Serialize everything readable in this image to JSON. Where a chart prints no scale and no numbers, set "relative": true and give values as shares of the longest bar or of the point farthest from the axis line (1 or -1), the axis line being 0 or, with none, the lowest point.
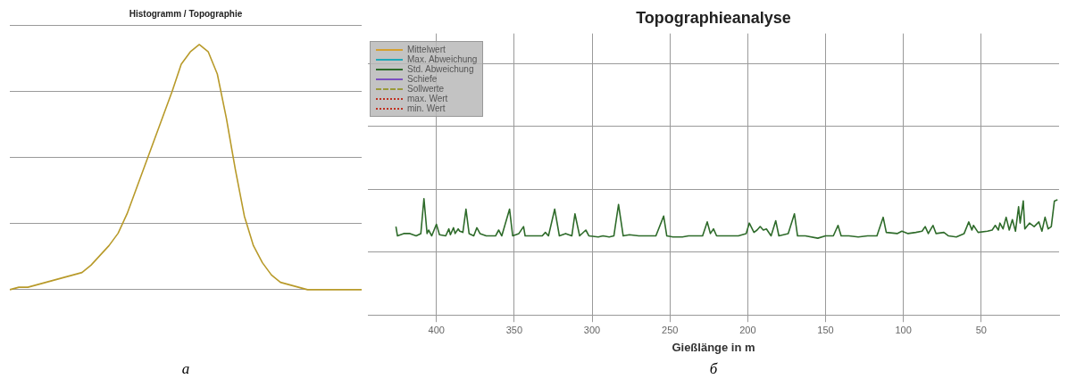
{
  "chart_data": [
    {
      "type": "line",
      "title": "Histogramm / Topographie",
      "relative": true,
      "categories": [
        null,
        null,
        null,
        null,
        null,
        null,
        null,
        null,
        null,
        null,
        null,
        null,
        null,
        null,
        null,
        null,
        null,
        null,
        null,
        null,
        null,
        null,
        null,
        null,
        null,
        null,
        null,
        null,
        null,
        null,
        null,
        null,
        null,
        null,
        null,
        null,
        null,
        null,
        null,
        null
      ],
      "values": [
        0,
        0.01,
        0.01,
        0.02,
        0.03,
        0.04,
        0.05,
        0.06,
        0.07,
        0.1,
        0.14,
        0.18,
        0.23,
        0.31,
        0.41,
        0.51,
        0.61,
        0.71,
        0.81,
        0.92,
        0.97,
        1,
        0.97,
        0.88,
        0.7,
        0.49,
        0.3,
        0.18,
        0.11,
        0.06,
        0.03,
        0.02,
        0.01,
        0,
        0,
        0,
        0,
        0,
        0,
        0
      ],
      "color": "#b89a2a",
      "marker": "none",
      "grid": "y",
      "annotations": [
        "а"
      ]
    },
    {
      "type": "line",
      "title": "Topographieanalyse",
      "xlabel": "Gießlänge in m",
      "relative": true,
      "xlim": [
        444,
        0
      ],
      "xticks": [
        400,
        350,
        300,
        250,
        200,
        150,
        100,
        50
      ],
      "grid": true,
      "legend": "top left",
      "marker": "none",
      "annotations": [
        "б"
      ],
      "series": [
        {
          "name": "Mittelwert",
          "color": "#d4a030"
        },
        {
          "name": "Max. Abweichung",
          "color": "#20a8b8"
        },
        {
          "name": "Std. Abweichung",
          "color": "#2e6b2a",
          "x": [
            426,
            425,
            421,
            417,
            413,
            410,
            408,
            406,
            405,
            403,
            400,
            398,
            394,
            392,
            391,
            389,
            388,
            386,
            385,
            383,
            381,
            379,
            376,
            374,
            372,
            368,
            362,
            360,
            358,
            353,
            351,
            347,
            344,
            343,
            338,
            332,
            330,
            328,
            324,
            321,
            317,
            313,
            311,
            308,
            304,
            302,
            296,
            293,
            289,
            286,
            283,
            280,
            276,
            270,
            264,
            259,
            254,
            252,
            248,
            242,
            238,
            232,
            229,
            226,
            224,
            222,
            220,
            214,
            206,
            201,
            199,
            196,
            194,
            192,
            190,
            188,
            185,
            182,
            180,
            174,
            170,
            168,
            163,
            155,
            150,
            145,
            142,
            140,
            135,
            129,
            123,
            117,
            113,
            111,
            104,
            101,
            97,
            92,
            88,
            86,
            84,
            81,
            79,
            74,
            71,
            66,
            61,
            58,
            56,
            55,
            52,
            46,
            43,
            41,
            39,
            38,
            36,
            34,
            32,
            30,
            28,
            26,
            25,
            23,
            22,
            19,
            16,
            13,
            11,
            9,
            7,
            5,
            3,
            1
          ],
          "values": [
            0.76,
            0.68,
            0.7,
            0.7,
            0.68,
            0.7,
            1,
            0.7,
            0.73,
            0.68,
            0.78,
            0.69,
            0.68,
            0.74,
            0.69,
            0.75,
            0.7,
            0.74,
            0.72,
            0.71,
            0.91,
            0.7,
            0.68,
            0.75,
            0.7,
            0.68,
            0.68,
            0.73,
            0.68,
            0.91,
            0.68,
            0.7,
            0.76,
            0.68,
            0.68,
            0.68,
            0.71,
            0.68,
            0.91,
            0.68,
            0.7,
            0.68,
            0.87,
            0.68,
            0.73,
            0.68,
            0.67,
            0.68,
            0.67,
            0.68,
            0.95,
            0.68,
            0.69,
            0.68,
            0.68,
            0.68,
            0.85,
            0.68,
            0.67,
            0.67,
            0.68,
            0.68,
            0.68,
            0.8,
            0.7,
            0.74,
            0.68,
            0.68,
            0.68,
            0.7,
            0.79,
            0.71,
            0.73,
            0.76,
            0.73,
            0.74,
            0.68,
            0.81,
            0.68,
            0.7,
            0.87,
            0.68,
            0.68,
            0.66,
            0.68,
            0.68,
            0.77,
            0.68,
            0.68,
            0.67,
            0.68,
            0.68,
            0.84,
            0.71,
            0.7,
            0.72,
            0.7,
            0.71,
            0.72,
            0.76,
            0.7,
            0.77,
            0.7,
            0.71,
            0.68,
            0.67,
            0.7,
            0.8,
            0.73,
            0.77,
            0.71,
            0.72,
            0.73,
            0.77,
            0.73,
            0.79,
            0.74,
            0.84,
            0.73,
            0.82,
            0.72,
            0.93,
            0.79,
            0.98,
            0.74,
            0.79,
            0.76,
            0.8,
            0.72,
            0.84,
            0.74,
            0.76,
            0.98,
            0.99
          ]
        },
        {
          "name": "Schiefe",
          "color": "#7b4fc0"
        },
        {
          "name": "Sollwerte",
          "color": "#9a9a3a",
          "line_style": "dashed"
        },
        {
          "name": "max. Wert",
          "color": "#c03020",
          "line_style": "dotted"
        },
        {
          "name": "min. Wert",
          "color": "#c03020",
          "line_style": "dotted"
        }
      ]
    }
  ]
}
